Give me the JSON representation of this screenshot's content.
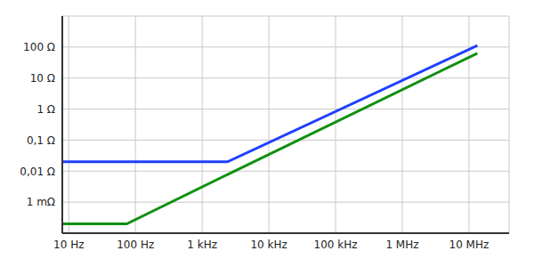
{
  "chart_data": {
    "type": "line",
    "log": true,
    "grid": true,
    "x": [
      8,
      74,
      2400,
      13400000
    ],
    "xlim": [
      8,
      40000000
    ],
    "xticks": [
      {
        "value": 10,
        "label": "10 Hz"
      },
      {
        "value": 100,
        "label": "100 Hz"
      },
      {
        "value": 1000,
        "label": "1 kHz"
      },
      {
        "value": 10000,
        "label": "10 kHz"
      },
      {
        "value": 100000,
        "label": "100 kHz"
      },
      {
        "value": 1000000,
        "label": "1 MHz"
      },
      {
        "value": 10000000,
        "label": "10 MHz"
      }
    ],
    "ylim": [
      0.0001,
      1000
    ],
    "yticks": [
      {
        "value": 0.001,
        "label": "1 mΩ"
      },
      {
        "value": 0.01,
        "label": "0,01 Ω"
      },
      {
        "value": 0.1,
        "label": "0,1 Ω"
      },
      {
        "value": 1,
        "label": "1 Ω"
      },
      {
        "value": 10,
        "label": "10 Ω"
      },
      {
        "value": 100,
        "label": "100 Ω"
      }
    ],
    "series": [
      {
        "color": "#1f3fff",
        "values": [
          0.02,
          0.02,
          0.02,
          112
        ]
      },
      {
        "color": "#109010",
        "values": [
          0.0002,
          0.0002,
          0.0078,
          63
        ]
      }
    ]
  }
}
